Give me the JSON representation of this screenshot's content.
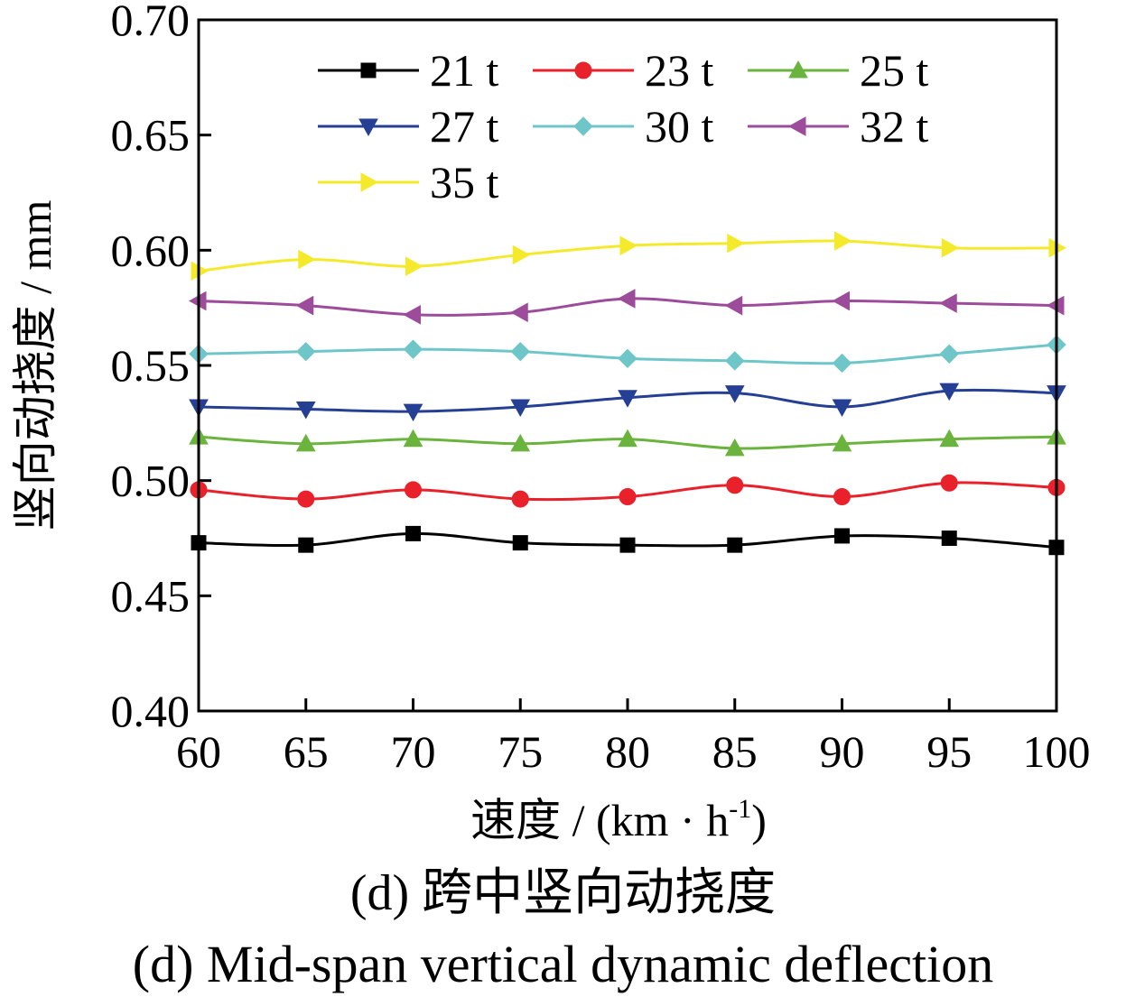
{
  "chart_data": {
    "type": "line",
    "xlabel": "速度 / (km · h",
    "xlabel_sup": "-1",
    "xlabel_close": ")",
    "ylabel": "竖向动挠度 / mm",
    "x": [
      60,
      65,
      70,
      75,
      80,
      85,
      90,
      95,
      100
    ],
    "xlim": [
      60,
      100
    ],
    "ylim": [
      0.4,
      0.7
    ],
    "xticks": [
      "60",
      "65",
      "70",
      "75",
      "80",
      "85",
      "90",
      "95",
      "100"
    ],
    "yticks": [
      "0.40",
      "0.45",
      "0.50",
      "0.55",
      "0.60",
      "0.65",
      "0.70"
    ],
    "grid": false,
    "legend_position": "top-center",
    "series": [
      {
        "name": "21 t",
        "color": "#000000",
        "marker": "square",
        "values": [
          0.473,
          0.472,
          0.477,
          0.473,
          0.472,
          0.472,
          0.476,
          0.475,
          0.471
        ]
      },
      {
        "name": "23 t",
        "color": "#e8212a",
        "marker": "circle",
        "values": [
          0.496,
          0.492,
          0.496,
          0.492,
          0.493,
          0.498,
          0.493,
          0.499,
          0.497
        ]
      },
      {
        "name": "25 t",
        "color": "#6ab43e",
        "marker": "triangle-up",
        "values": [
          0.519,
          0.516,
          0.518,
          0.516,
          0.518,
          0.514,
          0.516,
          0.518,
          0.519
        ]
      },
      {
        "name": "27 t",
        "color": "#243f94",
        "marker": "triangle-down",
        "values": [
          0.532,
          0.531,
          0.53,
          0.532,
          0.536,
          0.538,
          0.532,
          0.539,
          0.538
        ]
      },
      {
        "name": "30 t",
        "color": "#6fc6c9",
        "marker": "diamond",
        "values": [
          0.555,
          0.556,
          0.557,
          0.556,
          0.553,
          0.552,
          0.551,
          0.555,
          0.559
        ]
      },
      {
        "name": "32 t",
        "color": "#9d4b9b",
        "marker": "triangle-left",
        "values": [
          0.578,
          0.576,
          0.572,
          0.573,
          0.579,
          0.576,
          0.578,
          0.577,
          0.576
        ]
      },
      {
        "name": "35 t",
        "color": "#f4ea2b",
        "marker": "triangle-right",
        "values": [
          0.591,
          0.596,
          0.593,
          0.598,
          0.602,
          0.603,
          0.604,
          0.601,
          0.601
        ]
      }
    ]
  },
  "captions": {
    "zh": "(d)  跨中竖向动挠度",
    "en": "(d)  Mid-span vertical dynamic deflection"
  }
}
